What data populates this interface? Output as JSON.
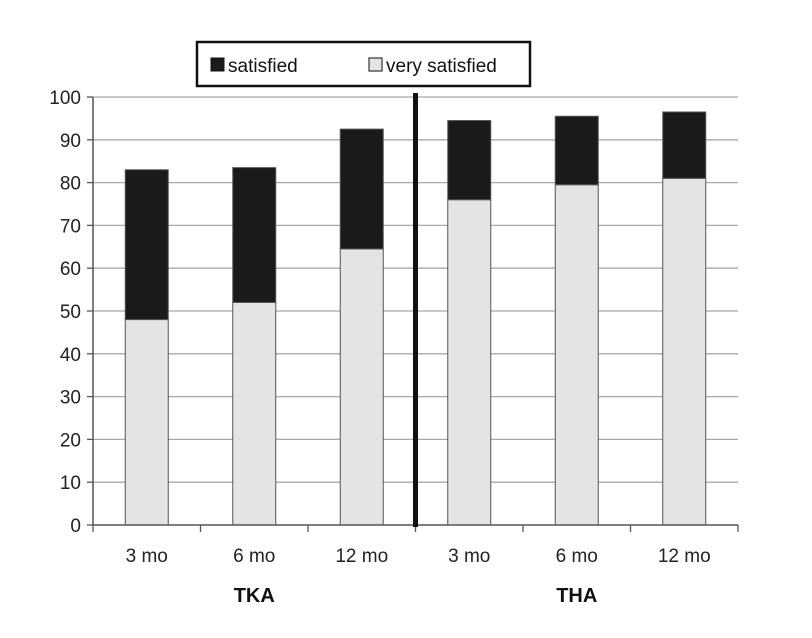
{
  "chart_data": {
    "type": "bar",
    "stacked": true,
    "groups": [
      {
        "label": "TKA",
        "categories": [
          "3 mo",
          "6 mo",
          "12 mo"
        ]
      },
      {
        "label": "THA",
        "categories": [
          "3 mo",
          "6 mo",
          "12 mo"
        ]
      }
    ],
    "categories": [
      "3 mo",
      "6 mo",
      "12 mo",
      "3 mo",
      "6 mo",
      "12 mo"
    ],
    "series": [
      {
        "name": "very satisfied",
        "color": "#e4e4e4",
        "values": [
          48,
          52,
          64.5,
          76,
          79.5,
          81
        ]
      },
      {
        "name": "satisfied",
        "color": "#1a1a1a",
        "values": [
          35,
          31.5,
          28,
          18.5,
          16,
          15.5
        ]
      }
    ],
    "ylim": [
      0,
      100
    ],
    "yticks": [
      "0",
      "10",
      "20",
      "30",
      "40",
      "50",
      "60",
      "70",
      "80",
      "90",
      "100"
    ],
    "grid": true,
    "legend": {
      "placement": "top-center",
      "entries": [
        "satisfied",
        "very satisfied"
      ]
    },
    "divider_after_category": 3,
    "title": "",
    "xlabel": "",
    "ylabel": ""
  }
}
